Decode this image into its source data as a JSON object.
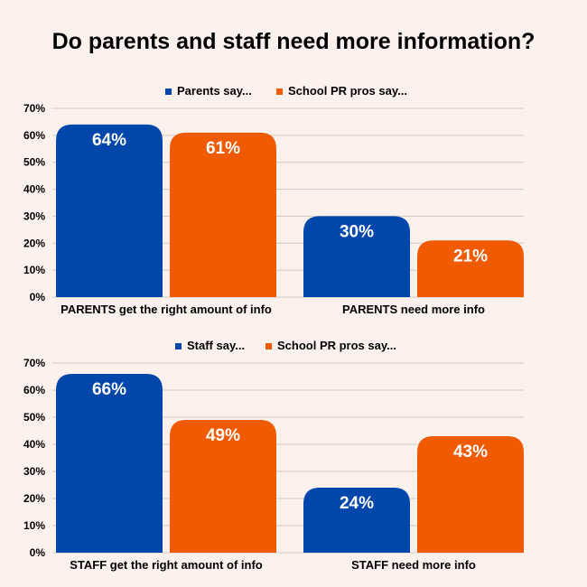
{
  "title": "Do parents and staff need more information?",
  "colors": {
    "series1": "#0047ab",
    "series2": "#f05a00",
    "grid": "#cfc7c3",
    "background": "#fdf1ed"
  },
  "chart_data": [
    {
      "type": "bar",
      "categories": [
        "PARENTS get the right amount of info",
        "PARENTS need more info"
      ],
      "series": [
        {
          "name": "Parents say...",
          "values": [
            64,
            30
          ],
          "labels": [
            "64%",
            "30%"
          ]
        },
        {
          "name": "School PR pros say...",
          "values": [
            61,
            21
          ],
          "labels": [
            "61%",
            "21%"
          ]
        }
      ],
      "ylim": [
        0,
        70
      ],
      "yticks": [
        "0%",
        "10%",
        "20%",
        "30%",
        "40%",
        "50%",
        "60%",
        "70%"
      ],
      "grid": true,
      "legend": "top-center"
    },
    {
      "type": "bar",
      "categories": [
        "STAFF get the right amount of info",
        "STAFF need more info"
      ],
      "series": [
        {
          "name": "Staff say...",
          "values": [
            66,
            24
          ],
          "labels": [
            "66%",
            "24%"
          ]
        },
        {
          "name": "School PR pros say...",
          "values": [
            49,
            43
          ],
          "labels": [
            "49%",
            "43%"
          ]
        }
      ],
      "ylim": [
        0,
        70
      ],
      "yticks": [
        "0%",
        "10%",
        "20%",
        "30%",
        "40%",
        "50%",
        "60%",
        "70%"
      ],
      "grid": true,
      "legend": "top-center"
    }
  ]
}
